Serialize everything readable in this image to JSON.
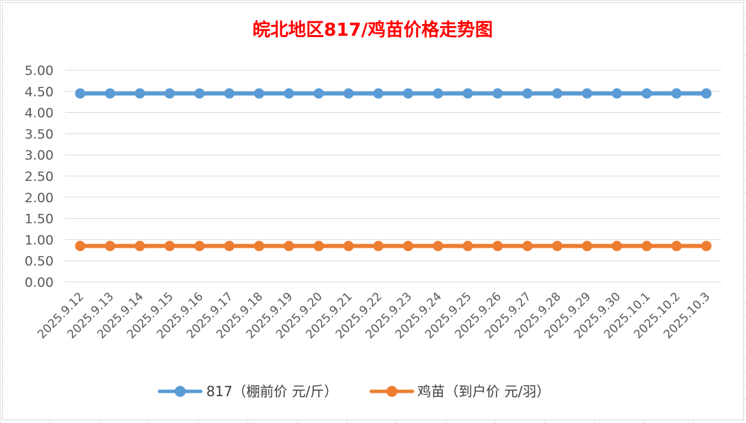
{
  "chart_data": {
    "type": "line",
    "title": "皖北地区817/鸡苗价格走势图",
    "title_color": "#FF0000",
    "categories": [
      "2025.9.12",
      "2025.9.13",
      "2025.9.14",
      "2025.9.15",
      "2025.9.16",
      "2025.9.17",
      "2025.9.18",
      "2025.9.19",
      "2025.9.20",
      "2025.9.21",
      "2025.9.22",
      "2025.9.23",
      "2025.9.24",
      "2025.9.25",
      "2025.9.26",
      "2025.9.27",
      "2025.9.28",
      "2025.9.29",
      "2025.9.30",
      "2025.10.1",
      "2025.10.2",
      "2025.10.3"
    ],
    "series": [
      {
        "name": "817（棚前价 元/斤）",
        "color": "#5B9BD5",
        "values": [
          4.45,
          4.45,
          4.45,
          4.45,
          4.45,
          4.45,
          4.45,
          4.45,
          4.45,
          4.45,
          4.45,
          4.45,
          4.45,
          4.45,
          4.45,
          4.45,
          4.45,
          4.45,
          4.45,
          4.45,
          4.45,
          4.45
        ]
      },
      {
        "name": "鸡苗（到户价 元/羽）",
        "color": "#ED7D31",
        "values": [
          0.85,
          0.85,
          0.85,
          0.85,
          0.85,
          0.85,
          0.85,
          0.85,
          0.85,
          0.85,
          0.85,
          0.85,
          0.85,
          0.85,
          0.85,
          0.85,
          0.85,
          0.85,
          0.85,
          0.85,
          0.85,
          0.85
        ]
      }
    ],
    "ylim": [
      0,
      5
    ],
    "yticks": [
      "0.00",
      "0.50",
      "1.00",
      "1.50",
      "2.00",
      "2.50",
      "3.00",
      "3.50",
      "4.00",
      "4.50",
      "5.00"
    ],
    "grid": true,
    "legend": "bottom"
  }
}
